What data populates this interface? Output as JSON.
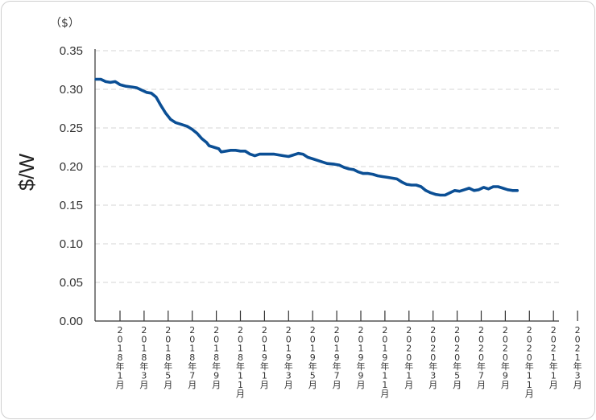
{
  "chart_data": {
    "type": "line",
    "unit_label": "（$）",
    "ylabel": "$/W",
    "ylim": [
      0,
      0.35
    ],
    "y_ticks": [
      "0.00",
      "0.05",
      "0.10",
      "0.15",
      "0.20",
      "0.25",
      "0.30",
      "0.35"
    ],
    "grid": true,
    "x_ticks": [
      {
        "t": 0,
        "label": "2018年1月"
      },
      {
        "t": 2,
        "label": "2018年3月"
      },
      {
        "t": 4,
        "label": "2018年5月"
      },
      {
        "t": 6,
        "label": "2018年7月"
      },
      {
        "t": 8,
        "label": "2018年9月"
      },
      {
        "t": 10,
        "label": "2018年11月"
      },
      {
        "t": 12,
        "label": "2019年1月"
      },
      {
        "t": 14,
        "label": "2019年3月"
      },
      {
        "t": 16,
        "label": "2019年5月"
      },
      {
        "t": 18,
        "label": "2019年7月"
      },
      {
        "t": 20,
        "label": "2019年9月"
      },
      {
        "t": 22,
        "label": "2019年11月"
      },
      {
        "t": 24,
        "label": "2020年1月"
      },
      {
        "t": 26,
        "label": "2020年3月"
      },
      {
        "t": 28,
        "label": "2020年5月"
      },
      {
        "t": 30,
        "label": "2020年7月"
      },
      {
        "t": 32,
        "label": "2020年9月"
      },
      {
        "t": 34,
        "label": "2020年11月"
      },
      {
        "t": 36,
        "label": "2021年1月"
      },
      {
        "t": 38,
        "label": "2021年3月"
      }
    ],
    "series": [
      {
        "color": "#0b4f95",
        "points": [
          [
            -2.0,
            0.313
          ],
          [
            -1.6,
            0.313
          ],
          [
            -1.2,
            0.31
          ],
          [
            -0.8,
            0.309
          ],
          [
            -0.4,
            0.31
          ],
          [
            0.0,
            0.306
          ],
          [
            0.5,
            0.304
          ],
          [
            1.0,
            0.303
          ],
          [
            1.4,
            0.302
          ],
          [
            1.8,
            0.299
          ],
          [
            2.2,
            0.296
          ],
          [
            2.6,
            0.295
          ],
          [
            3.0,
            0.29
          ],
          [
            3.4,
            0.279
          ],
          [
            3.8,
            0.269
          ],
          [
            4.2,
            0.261
          ],
          [
            4.6,
            0.257
          ],
          [
            5.0,
            0.255
          ],
          [
            5.6,
            0.252
          ],
          [
            6.0,
            0.248
          ],
          [
            6.4,
            0.243
          ],
          [
            6.8,
            0.236
          ],
          [
            7.2,
            0.231
          ],
          [
            7.4,
            0.227
          ],
          [
            7.8,
            0.225
          ],
          [
            8.2,
            0.223
          ],
          [
            8.4,
            0.219
          ],
          [
            8.8,
            0.22
          ],
          [
            9.2,
            0.221
          ],
          [
            9.6,
            0.221
          ],
          [
            10.0,
            0.22
          ],
          [
            10.4,
            0.22
          ],
          [
            10.8,
            0.216
          ],
          [
            11.2,
            0.214
          ],
          [
            11.6,
            0.216
          ],
          [
            12.0,
            0.216
          ],
          [
            12.8,
            0.216
          ],
          [
            13.2,
            0.215
          ],
          [
            13.6,
            0.214
          ],
          [
            14.0,
            0.213
          ],
          [
            14.4,
            0.215
          ],
          [
            14.8,
            0.217
          ],
          [
            15.2,
            0.216
          ],
          [
            15.6,
            0.212
          ],
          [
            16.0,
            0.21
          ],
          [
            16.6,
            0.207
          ],
          [
            17.2,
            0.204
          ],
          [
            17.8,
            0.203
          ],
          [
            18.2,
            0.202
          ],
          [
            18.6,
            0.199
          ],
          [
            19.0,
            0.197
          ],
          [
            19.4,
            0.196
          ],
          [
            19.8,
            0.193
          ],
          [
            20.2,
            0.191
          ],
          [
            20.6,
            0.191
          ],
          [
            21.0,
            0.19
          ],
          [
            21.4,
            0.188
          ],
          [
            21.8,
            0.187
          ],
          [
            22.2,
            0.186
          ],
          [
            22.6,
            0.185
          ],
          [
            23.0,
            0.184
          ],
          [
            23.4,
            0.18
          ],
          [
            23.8,
            0.177
          ],
          [
            24.2,
            0.176
          ],
          [
            24.6,
            0.176
          ],
          [
            25.0,
            0.174
          ],
          [
            25.4,
            0.169
          ],
          [
            25.8,
            0.166
          ],
          [
            26.2,
            0.164
          ],
          [
            26.6,
            0.163
          ],
          [
            27.0,
            0.163
          ],
          [
            27.4,
            0.166
          ],
          [
            27.8,
            0.169
          ],
          [
            28.2,
            0.168
          ],
          [
            28.6,
            0.17
          ],
          [
            29.0,
            0.172
          ],
          [
            29.4,
            0.169
          ],
          [
            29.8,
            0.17
          ],
          [
            30.2,
            0.173
          ],
          [
            30.6,
            0.171
          ],
          [
            31.0,
            0.174
          ],
          [
            31.4,
            0.174
          ],
          [
            31.8,
            0.172
          ],
          [
            32.2,
            0.17
          ],
          [
            32.6,
            0.169
          ],
          [
            33.0,
            0.169
          ]
        ]
      }
    ]
  }
}
